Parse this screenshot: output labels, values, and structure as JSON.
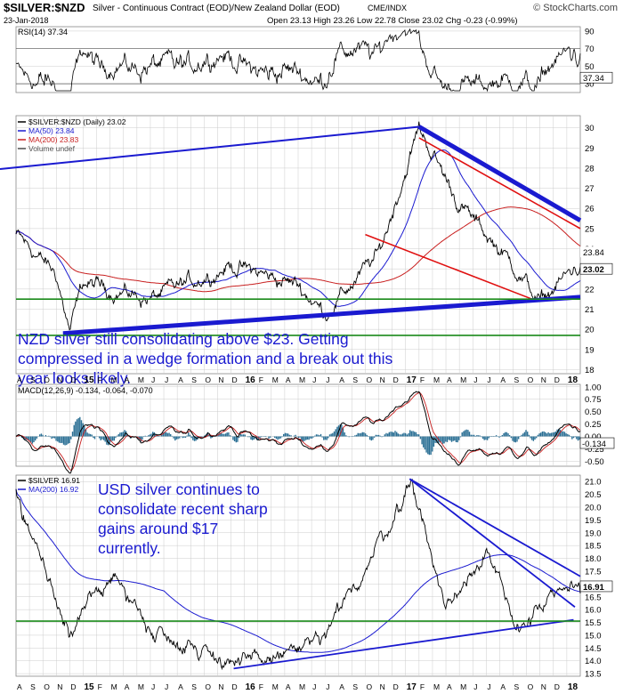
{
  "header": {
    "symbol": "$SILVER:$NZD",
    "description": "Silver - Continuous Contract (EOD)/New Zealand Dollar (EOD)",
    "exchange": "CME/INDX",
    "date": "23-Jan-2018",
    "ohlc": "Open 23.13  High 23.26  Low 22.78  Close 23.02  Chg -0.23 (-0.99%)",
    "copyright": "© StockCharts.com"
  },
  "colors": {
    "price_line": "#000000",
    "ma50": "#1a1ad0",
    "ma200": "#c81e1e",
    "trend_blue": "#1a1ad0",
    "trend_red": "#e01010",
    "support_green": "#1a8a1a",
    "annotation_text": "#1a1ad0",
    "macd_hist": "#2a6f94",
    "grid": "#cccccc",
    "panel_border": "#888888"
  },
  "chart_data": [
    {
      "type": "line",
      "name": "rsi-panel",
      "legend": "RSI(14) 37.34",
      "ylim": [
        20,
        95
      ],
      "yticks": [
        90,
        70,
        50,
        30
      ],
      "last_value": "37.34",
      "reference_lines": [
        70,
        30
      ]
    },
    {
      "type": "line",
      "name": "price-panel",
      "ylim": [
        17.8,
        30.6
      ],
      "yticks": [
        30,
        29,
        28,
        27,
        26,
        25,
        24,
        23,
        22,
        21,
        20,
        19,
        18
      ],
      "legend": [
        "$SILVER:$NZD (Daily) 23.02",
        "MA(50) 23.84",
        "MA(200) 23.83",
        "Volume undef"
      ],
      "last_labels": [
        "23.84",
        "23.02"
      ],
      "x_ticks": [
        "A",
        "S",
        "O",
        "N",
        "D",
        "15",
        "F",
        "M",
        "A",
        "M",
        "J",
        "J",
        "A",
        "S",
        "O",
        "N",
        "D",
        "16",
        "F",
        "M",
        "A",
        "M",
        "J",
        "J",
        "A",
        "S",
        "O",
        "N",
        "D",
        "17",
        "F",
        "M",
        "A",
        "M",
        "J",
        "J",
        "A",
        "S",
        "O",
        "N",
        "D",
        "18"
      ],
      "anchors_x": [
        0,
        3,
        4,
        5,
        10,
        16,
        21,
        23,
        27,
        30,
        33,
        37,
        39,
        41.5
      ],
      "anchors_y": [
        24.7,
        22.7,
        19.9,
        22.3,
        21.5,
        23.2,
        22.2,
        20.8,
        23.7,
        30.0,
        26.2,
        23.2,
        21.3,
        23.0
      ],
      "annotation": "NZD silver still consolidating above $23. Getting compressed in a wedge formation and a break out this year looks likely."
    },
    {
      "type": "line",
      "name": "macd-panel",
      "legend": "MACD(12,26,9) -0.134, -0.064, -0.070",
      "ylim": [
        -0.6,
        1.05
      ],
      "yticks": [
        1.0,
        0.75,
        0.5,
        0.25,
        0.0,
        -0.25,
        -0.5
      ],
      "last_value": "-0.134"
    },
    {
      "type": "line",
      "name": "usd-silver-panel",
      "ylim": [
        13.4,
        21.25
      ],
      "yticks": [
        21.0,
        20.5,
        20.0,
        19.5,
        19.0,
        18.5,
        18.0,
        17.5,
        17.0,
        16.5,
        16.0,
        15.5,
        15.0,
        14.5,
        14.0,
        13.5
      ],
      "legend": [
        "$SILVER 16.91",
        "MA(200) 16.92"
      ],
      "last_value": "16.91",
      "x_ticks": [
        "A",
        "S",
        "O",
        "N",
        "D",
        "15",
        "F",
        "M",
        "A",
        "M",
        "J",
        "J",
        "A",
        "S",
        "O",
        "N",
        "D",
        "16",
        "F",
        "M",
        "A",
        "M",
        "J",
        "J",
        "A",
        "S",
        "O",
        "N",
        "D",
        "17",
        "F",
        "M",
        "A",
        "M",
        "J",
        "J",
        "A",
        "S",
        "O",
        "N",
        "D",
        "18"
      ],
      "anchors_x": [
        0,
        3,
        4,
        7,
        10,
        16,
        17,
        23,
        29.5,
        32,
        35,
        37,
        41.5
      ],
      "anchors_y": [
        20.6,
        16.4,
        14.8,
        17.5,
        15.3,
        14.0,
        13.8,
        14.8,
        21.0,
        16.0,
        18.5,
        15.3,
        16.9
      ],
      "annotation": "USD silver continues to consolidate recent sharp gains around $17 currently."
    }
  ]
}
